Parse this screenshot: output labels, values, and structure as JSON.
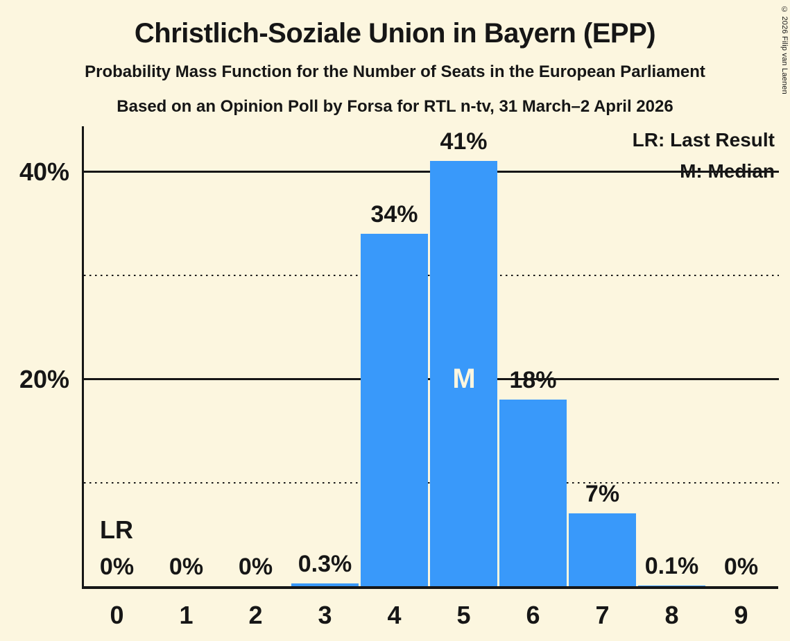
{
  "header": {
    "title": "Christlich-Soziale Union in Bayern (EPP)",
    "subtitle1": "Probability Mass Function for the Number of Seats in the European Parliament",
    "subtitle2": "Based on an Opinion Poll by Forsa for RTL n-tv, 31 March–2 April 2026"
  },
  "copyright": "© 2026 Filip van Laenen",
  "legend": {
    "lr": "LR: Last Result",
    "m": "M: Median"
  },
  "annotations": {
    "last_result": "LR",
    "median": "M"
  },
  "colors": {
    "background": "#FCF6DF",
    "bar": "#3999FA",
    "text": "#161616",
    "axis": "#161616",
    "median_label": "#FCF6DF"
  },
  "chart_data": {
    "type": "bar",
    "title": "Probability Mass Function for the Number of Seats in the European Parliament",
    "xlabel": "",
    "ylabel": "",
    "categories": [
      "0",
      "1",
      "2",
      "3",
      "4",
      "5",
      "6",
      "7",
      "8",
      "9"
    ],
    "values": [
      0,
      0,
      0,
      0.3,
      34,
      41,
      18,
      7,
      0.1,
      0
    ],
    "labels": [
      "0%",
      "0%",
      "0%",
      "0.3%",
      "34%",
      "41%",
      "18%",
      "7%",
      "0.1%",
      "0%"
    ],
    "median_category": "5",
    "last_result_category": "0",
    "ylim": [
      0,
      44
    ],
    "yticks": [
      {
        "value": 20,
        "label": "20%"
      },
      {
        "value": 40,
        "label": "40%"
      }
    ],
    "gridlines": [
      {
        "value": 10,
        "style": "dotted"
      },
      {
        "value": 20,
        "style": "solid"
      },
      {
        "value": 30,
        "style": "dotted"
      },
      {
        "value": 40,
        "style": "solid"
      }
    ],
    "grid": true,
    "legend_position": "top-right"
  }
}
